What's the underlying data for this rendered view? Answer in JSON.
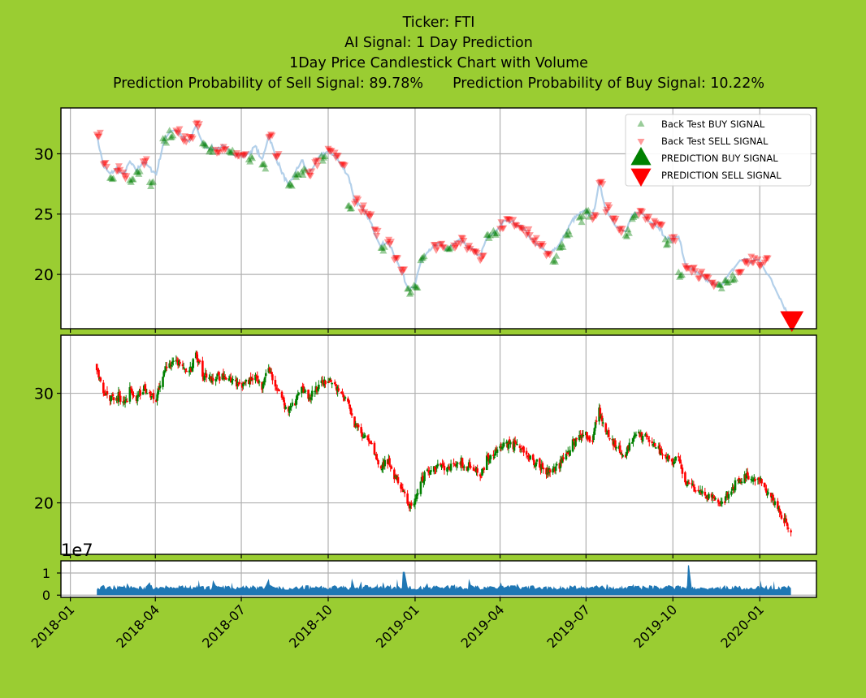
{
  "title": {
    "line1": "Ticker: FTI",
    "line2": "AI Signal: 1 Day Prediction",
    "line3": "1Day Price Candlestick Chart with Volume",
    "sell_prob_label": "Prediction Probability of Sell Signal: 89.78%",
    "buy_prob_label": "Prediction Probability of Buy Signal: 10.22%"
  },
  "colors": {
    "background": "#9acd32",
    "panel": "#ffffff",
    "grid": "#b0b0b0",
    "price_line": "#a6c8e6",
    "buy": "#008000",
    "sell": "#ff0000",
    "volume": "#1f77b4"
  },
  "legend": {
    "placement": "top-right",
    "items": [
      "Back Test BUY SIGNAL",
      "Back Test SELL SIGNAL",
      "PREDICTION BUY SIGNAL",
      "PREDICTION SELL SIGNAL"
    ]
  },
  "volume_exponent_label": "1e7",
  "chart_data": {
    "type": "line",
    "x_axis": {
      "ticks": [
        "2018-01",
        "2018-04",
        "2018-07",
        "2018-10",
        "2019-01",
        "2019-04",
        "2019-07",
        "2019-10",
        "2020-01"
      ],
      "xlim": [
        "2017-12-22",
        "2020-03-01"
      ]
    },
    "price_panel": {
      "ylim": [
        15.5,
        33.8
      ],
      "yticks": [
        20,
        25,
        30
      ],
      "grid": true,
      "series": [
        {
          "name": "Price",
          "x": [
            "2018-01-29",
            "2018-02-05",
            "2018-02-12",
            "2018-02-19",
            "2018-02-26",
            "2018-03-05",
            "2018-03-12",
            "2018-03-19",
            "2018-03-26",
            "2018-04-02",
            "2018-04-09",
            "2018-04-16",
            "2018-04-23",
            "2018-04-30",
            "2018-05-07",
            "2018-05-14",
            "2018-05-21",
            "2018-05-28",
            "2018-06-04",
            "2018-06-11",
            "2018-06-18",
            "2018-06-25",
            "2018-07-02",
            "2018-07-09",
            "2018-07-16",
            "2018-07-23",
            "2018-07-30",
            "2018-08-06",
            "2018-08-13",
            "2018-08-20",
            "2018-08-27",
            "2018-09-03",
            "2018-09-10",
            "2018-09-17",
            "2018-09-24",
            "2018-10-01",
            "2018-10-08",
            "2018-10-15",
            "2018-10-22",
            "2018-10-29",
            "2018-11-05",
            "2018-11-12",
            "2018-11-19",
            "2018-11-26",
            "2018-12-03",
            "2018-12-10",
            "2018-12-17",
            "2018-12-24",
            "2018-12-31",
            "2019-01-07",
            "2019-01-14",
            "2019-01-21",
            "2019-01-28",
            "2019-02-04",
            "2019-02-11",
            "2019-02-18",
            "2019-02-25",
            "2019-03-04",
            "2019-03-11",
            "2019-03-18",
            "2019-03-25",
            "2019-04-01",
            "2019-04-08",
            "2019-04-15",
            "2019-04-22",
            "2019-04-29",
            "2019-05-06",
            "2019-05-13",
            "2019-05-20",
            "2019-05-27",
            "2019-06-03",
            "2019-06-10",
            "2019-06-17",
            "2019-06-24",
            "2019-07-01",
            "2019-07-08",
            "2019-07-15",
            "2019-07-22",
            "2019-07-29",
            "2019-08-05",
            "2019-08-12",
            "2019-08-19",
            "2019-08-26",
            "2019-09-02",
            "2019-09-09",
            "2019-09-16",
            "2019-09-23",
            "2019-09-30",
            "2019-10-07",
            "2019-10-14",
            "2019-10-21",
            "2019-10-28",
            "2019-11-04",
            "2019-11-11",
            "2019-11-18",
            "2019-11-25",
            "2019-12-02",
            "2019-12-09",
            "2019-12-16",
            "2019-12-23",
            "2019-12-30",
            "2020-01-06",
            "2020-01-13",
            "2020-01-20",
            "2020-01-27",
            "2020-02-03"
          ],
          "values": [
            31.5,
            29.0,
            28.3,
            28.8,
            28.2,
            29.3,
            28.6,
            29.4,
            28.8,
            28.3,
            30.8,
            31.9,
            32.0,
            31.3,
            31.0,
            32.4,
            30.8,
            30.5,
            30.4,
            30.6,
            30.2,
            30.0,
            29.8,
            30.0,
            30.6,
            29.4,
            31.6,
            29.8,
            28.5,
            27.3,
            28.4,
            29.5,
            28.3,
            29.2,
            29.9,
            30.2,
            29.9,
            29.0,
            28.3,
            26.2,
            25.5,
            24.8,
            23.5,
            22.4,
            22.8,
            21.5,
            20.5,
            18.8,
            19.0,
            21.0,
            22.0,
            22.3,
            22.5,
            22.0,
            22.5,
            22.8,
            22.3,
            22.0,
            21.5,
            23.0,
            23.3,
            24.1,
            24.5,
            24.3,
            24.0,
            23.5,
            22.8,
            22.3,
            21.8,
            22.0,
            22.5,
            23.5,
            24.5,
            25.0,
            25.2,
            24.8,
            27.5,
            25.5,
            24.5,
            23.8,
            23.5,
            24.8,
            25.3,
            24.8,
            24.3,
            24.0,
            23.0,
            22.9,
            23.3,
            20.8,
            20.5,
            20.0,
            19.6,
            19.3,
            19.0,
            19.5,
            20.2,
            21.0,
            21.3,
            21.0,
            21.3,
            20.5,
            19.5,
            18.5,
            17.3,
            16.3
          ]
        }
      ],
      "buy_signals": {
        "name": "Back Test BUY SIGNAL",
        "x": [
          "2018-02-12",
          "2018-03-05",
          "2018-03-12",
          "2018-03-26",
          "2018-04-09",
          "2018-04-16",
          "2018-05-21",
          "2018-05-28",
          "2018-06-18",
          "2018-07-09",
          "2018-07-23",
          "2018-08-20",
          "2018-08-27",
          "2018-09-03",
          "2018-09-24",
          "2018-10-22",
          "2018-11-26",
          "2018-12-24",
          "2018-12-31",
          "2019-01-07",
          "2019-02-04",
          "2019-03-18",
          "2019-03-25",
          "2019-05-27",
          "2019-06-03",
          "2019-06-10",
          "2019-06-24",
          "2019-07-01",
          "2019-08-12",
          "2019-08-19",
          "2019-09-23",
          "2019-10-07",
          "2019-11-18",
          "2019-11-25",
          "2019-12-02"
        ],
        "values": [
          28.1,
          27.8,
          28.3,
          27.5,
          31.0,
          31.6,
          30.6,
          30.3,
          30.0,
          29.6,
          29.0,
          27.2,
          28.2,
          28.5,
          29.5,
          25.6,
          22.2,
          18.6,
          19.0,
          21.4,
          22.1,
          23.0,
          23.3,
          21.3,
          22.4,
          23.4,
          24.6,
          25.0,
          23.4,
          24.7,
          22.7,
          20.0,
          19.0,
          19.2,
          19.7
        ]
      },
      "sell_signals": {
        "name": "Back Test SELL SIGNAL",
        "x": [
          "2018-01-29",
          "2018-02-05",
          "2018-02-19",
          "2018-02-26",
          "2018-03-19",
          "2018-04-23",
          "2018-04-30",
          "2018-05-07",
          "2018-05-14",
          "2018-06-04",
          "2018-06-11",
          "2018-06-25",
          "2018-07-02",
          "2018-07-30",
          "2018-08-06",
          "2018-09-10",
          "2018-09-17",
          "2018-10-01",
          "2018-10-08",
          "2018-10-15",
          "2018-10-29",
          "2018-11-05",
          "2018-11-12",
          "2018-11-19",
          "2018-12-03",
          "2018-12-10",
          "2018-12-17",
          "2019-01-21",
          "2019-01-28",
          "2019-02-11",
          "2019-02-18",
          "2019-02-25",
          "2019-03-04",
          "2019-03-11",
          "2019-04-01",
          "2019-04-08",
          "2019-04-15",
          "2019-04-22",
          "2019-04-29",
          "2019-05-06",
          "2019-05-13",
          "2019-05-20",
          "2019-07-08",
          "2019-07-15",
          "2019-07-22",
          "2019-07-29",
          "2019-08-05",
          "2019-08-26",
          "2019-09-02",
          "2019-09-09",
          "2019-09-16",
          "2019-09-30",
          "2019-10-14",
          "2019-10-21",
          "2019-10-28",
          "2019-11-04",
          "2019-11-11",
          "2019-12-09",
          "2019-12-16",
          "2019-12-23",
          "2019-12-30",
          "2020-01-06"
        ],
        "values": [
          31.5,
          29.2,
          28.8,
          28.2,
          29.4,
          32.0,
          31.3,
          31.2,
          32.4,
          30.4,
          30.6,
          30.0,
          29.8,
          31.6,
          29.8,
          28.3,
          29.2,
          30.2,
          29.9,
          29.0,
          26.2,
          25.5,
          24.8,
          23.5,
          22.8,
          21.5,
          20.5,
          22.3,
          22.5,
          22.5,
          22.8,
          22.3,
          22.0,
          21.5,
          24.1,
          24.5,
          24.3,
          24.0,
          23.5,
          22.8,
          22.3,
          21.8,
          24.8,
          27.5,
          25.5,
          24.5,
          23.8,
          25.3,
          24.8,
          24.3,
          24.0,
          22.9,
          20.8,
          20.5,
          20.0,
          19.6,
          19.3,
          20.2,
          21.0,
          21.3,
          21.0,
          21.3
        ]
      },
      "prediction_sell": {
        "name": "PREDICTION SELL SIGNAL",
        "x": "2020-02-04",
        "value": 16.3
      }
    },
    "candlestick_panel": {
      "ylim": [
        15.3,
        35.3
      ],
      "yticks": [
        20,
        30
      ],
      "grid": true,
      "up_color": "green",
      "down_color": "red"
    },
    "volume_panel": {
      "ylim": [
        -0.1,
        1.55
      ],
      "yticks": [
        0,
        1
      ],
      "scale_label": "1e7",
      "peak_values": [
        {
          "x": "2018-12-20",
          "value": 1.05
        },
        {
          "x": "2019-10-18",
          "value": 1.35
        }
      ],
      "typical_value": 0.35
    }
  }
}
